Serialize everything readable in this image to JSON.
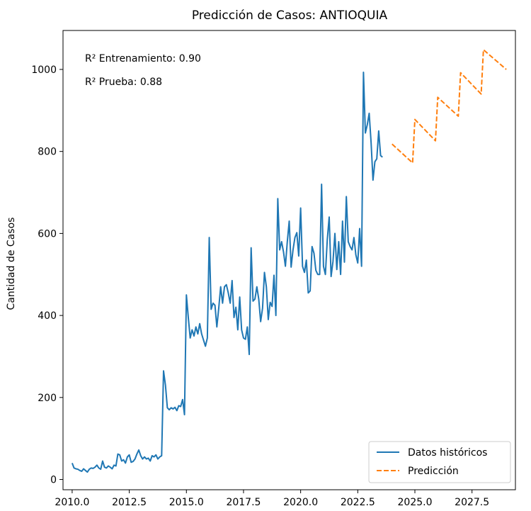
{
  "chart_data": {
    "type": "line",
    "title": "Predicción de Casos: ANTIOQUIA",
    "xlabel": "",
    "ylabel": "Cantidad de Casos",
    "xlim": [
      2009.6,
      2029.4
    ],
    "ylim": [
      -25,
      1095
    ],
    "x_ticks": [
      2010.0,
      2012.5,
      2015.0,
      2017.5,
      2020.0,
      2022.5,
      2025.0,
      2027.5
    ],
    "x_tick_labels": [
      "2010.0",
      "2012.5",
      "2015.0",
      "2017.5",
      "2020.0",
      "2022.5",
      "2025.0",
      "2027.5"
    ],
    "y_ticks": [
      0,
      200,
      400,
      600,
      800,
      1000
    ],
    "y_tick_labels": [
      "0",
      "200",
      "400",
      "600",
      "800",
      "1000"
    ],
    "grid": false,
    "legend_position": "lower-right",
    "annotations": [
      "R² Entrenamiento: 0.90",
      "R² Prueba: 0.88"
    ],
    "series": [
      {
        "name": "Datos históricos",
        "color": "#1f77b4",
        "style": "solid",
        "x_start": 2010.0,
        "x_step": 0.08333,
        "values": [
          40,
          28,
          26,
          25,
          22,
          20,
          26,
          22,
          18,
          25,
          28,
          27,
          30,
          35,
          28,
          25,
          45,
          30,
          28,
          33,
          30,
          26,
          35,
          33,
          62,
          60,
          45,
          48,
          40,
          55,
          60,
          42,
          44,
          50,
          62,
          72,
          58,
          50,
          55,
          50,
          52,
          45,
          58,
          55,
          60,
          50,
          55,
          58,
          265,
          230,
          175,
          170,
          175,
          172,
          176,
          168,
          180,
          178,
          195,
          158,
          450,
          395,
          345,
          365,
          350,
          372,
          355,
          380,
          355,
          340,
          325,
          345,
          590,
          415,
          430,
          425,
          372,
          418,
          470,
          430,
          470,
          475,
          455,
          430,
          485,
          395,
          420,
          365,
          445,
          365,
          345,
          342,
          372,
          305,
          565,
          435,
          440,
          470,
          440,
          385,
          418,
          505,
          470,
          390,
          432,
          422,
          498,
          400,
          685,
          560,
          580,
          555,
          520,
          580,
          630,
          518,
          560,
          590,
          602,
          545,
          662,
          520,
          505,
          535,
          455,
          460,
          568,
          552,
          510,
          500,
          500,
          720,
          520,
          500,
          585,
          640,
          495,
          532,
          600,
          512,
          580,
          500,
          630,
          530,
          690,
          580,
          568,
          560,
          590,
          548,
          528,
          612,
          520,
          993,
          845,
          865,
          893,
          822,
          730,
          775,
          782,
          850,
          790,
          786
        ]
      },
      {
        "name": "Predicción",
        "color": "#ff7f0e",
        "style": "dashed",
        "points": [
          [
            2024.0,
            818
          ],
          [
            2024.9,
            772
          ],
          [
            2025.0,
            878
          ],
          [
            2025.9,
            826
          ],
          [
            2026.0,
            932
          ],
          [
            2026.9,
            886
          ],
          [
            2027.0,
            992
          ],
          [
            2027.9,
            940
          ],
          [
            2028.0,
            1048
          ],
          [
            2029.0,
            1000
          ]
        ]
      }
    ]
  }
}
